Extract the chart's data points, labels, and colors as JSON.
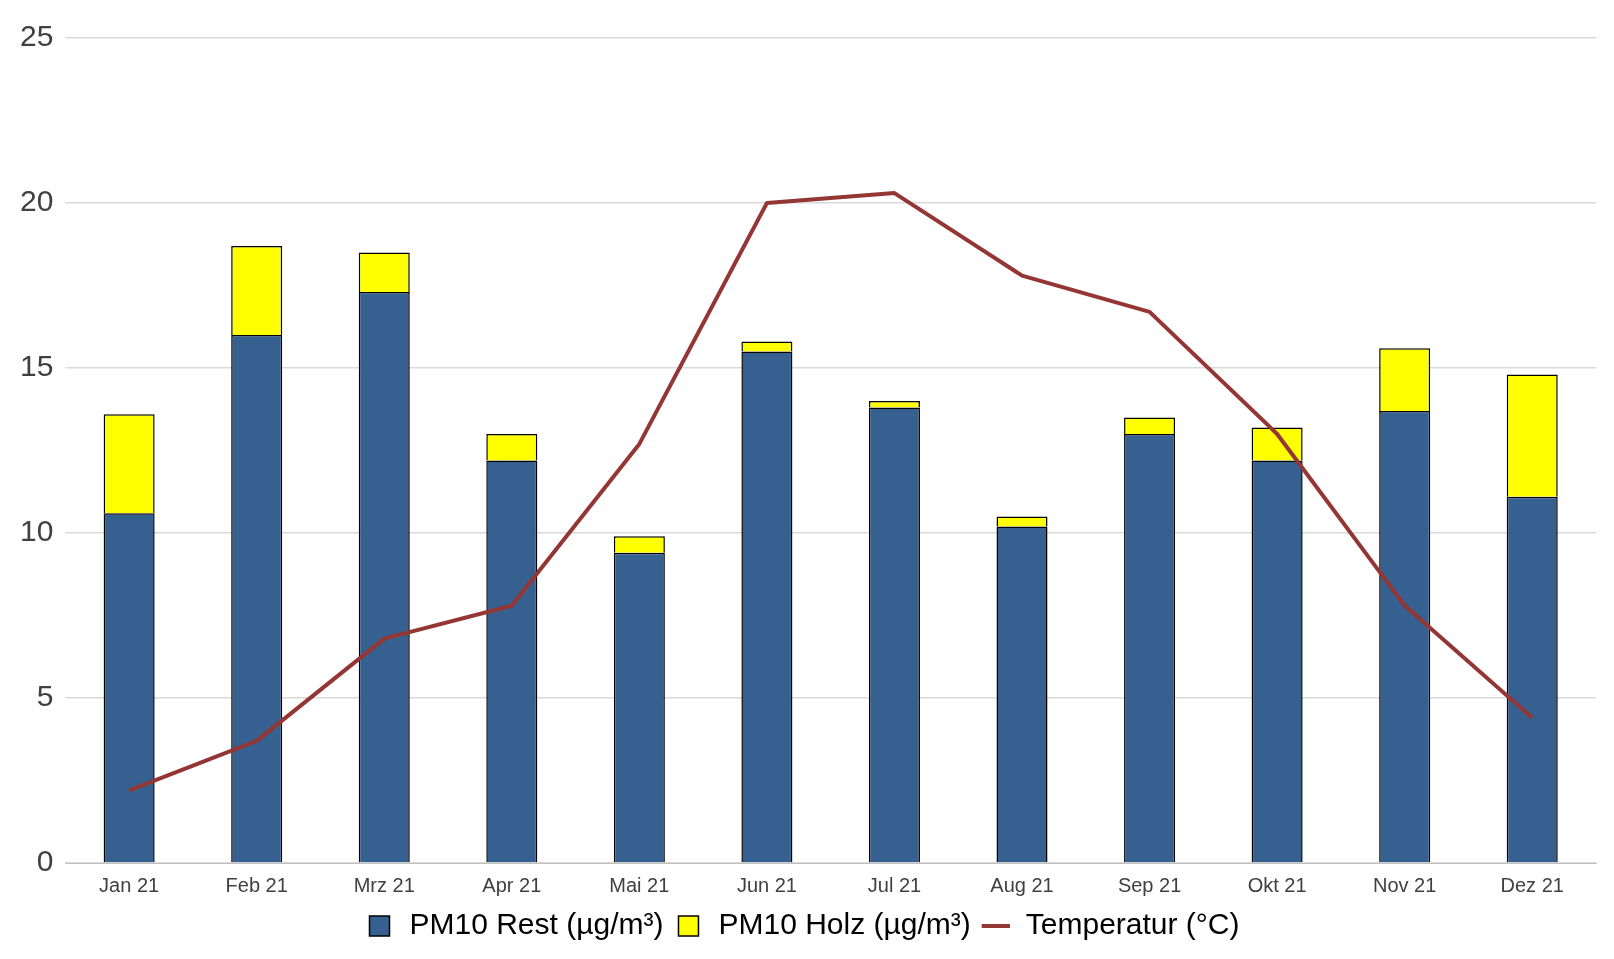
{
  "chart_data": {
    "type": "bar",
    "stacked": true,
    "categories": [
      "Jan 21",
      "Feb 21",
      "Mrz 21",
      "Apr 21",
      "Mai 21",
      "Jun 21",
      "Jul 21",
      "Aug 21",
      "Sep 21",
      "Okt 21",
      "Nov 21",
      "Dez 21"
    ],
    "series": [
      {
        "name": "PM10 Rest (µg/m³)",
        "color": "#36608f",
        "values": [
          10.6,
          16.0,
          17.3,
          12.2,
          9.4,
          15.5,
          13.8,
          10.2,
          13.0,
          12.2,
          13.7,
          11.1
        ]
      },
      {
        "name": "PM10 Holz (µg/m³)",
        "color": "#ffff00",
        "values": [
          3.0,
          2.7,
          1.2,
          0.8,
          0.5,
          0.3,
          0.2,
          0.3,
          0.5,
          1.0,
          1.9,
          3.7
        ]
      },
      {
        "name": "Temperatur (°C)",
        "color": "#943634",
        "type": "line",
        "values": [
          2.2,
          3.7,
          6.8,
          7.8,
          12.7,
          20.0,
          20.3,
          17.8,
          16.7,
          13.0,
          7.8,
          4.4
        ]
      }
    ],
    "ylim": [
      0,
      25
    ],
    "yticks": [
      0,
      5,
      10,
      15,
      20,
      25
    ],
    "grid": "y",
    "legend": "bottom",
    "marker": "none",
    "line_style": "solid"
  }
}
